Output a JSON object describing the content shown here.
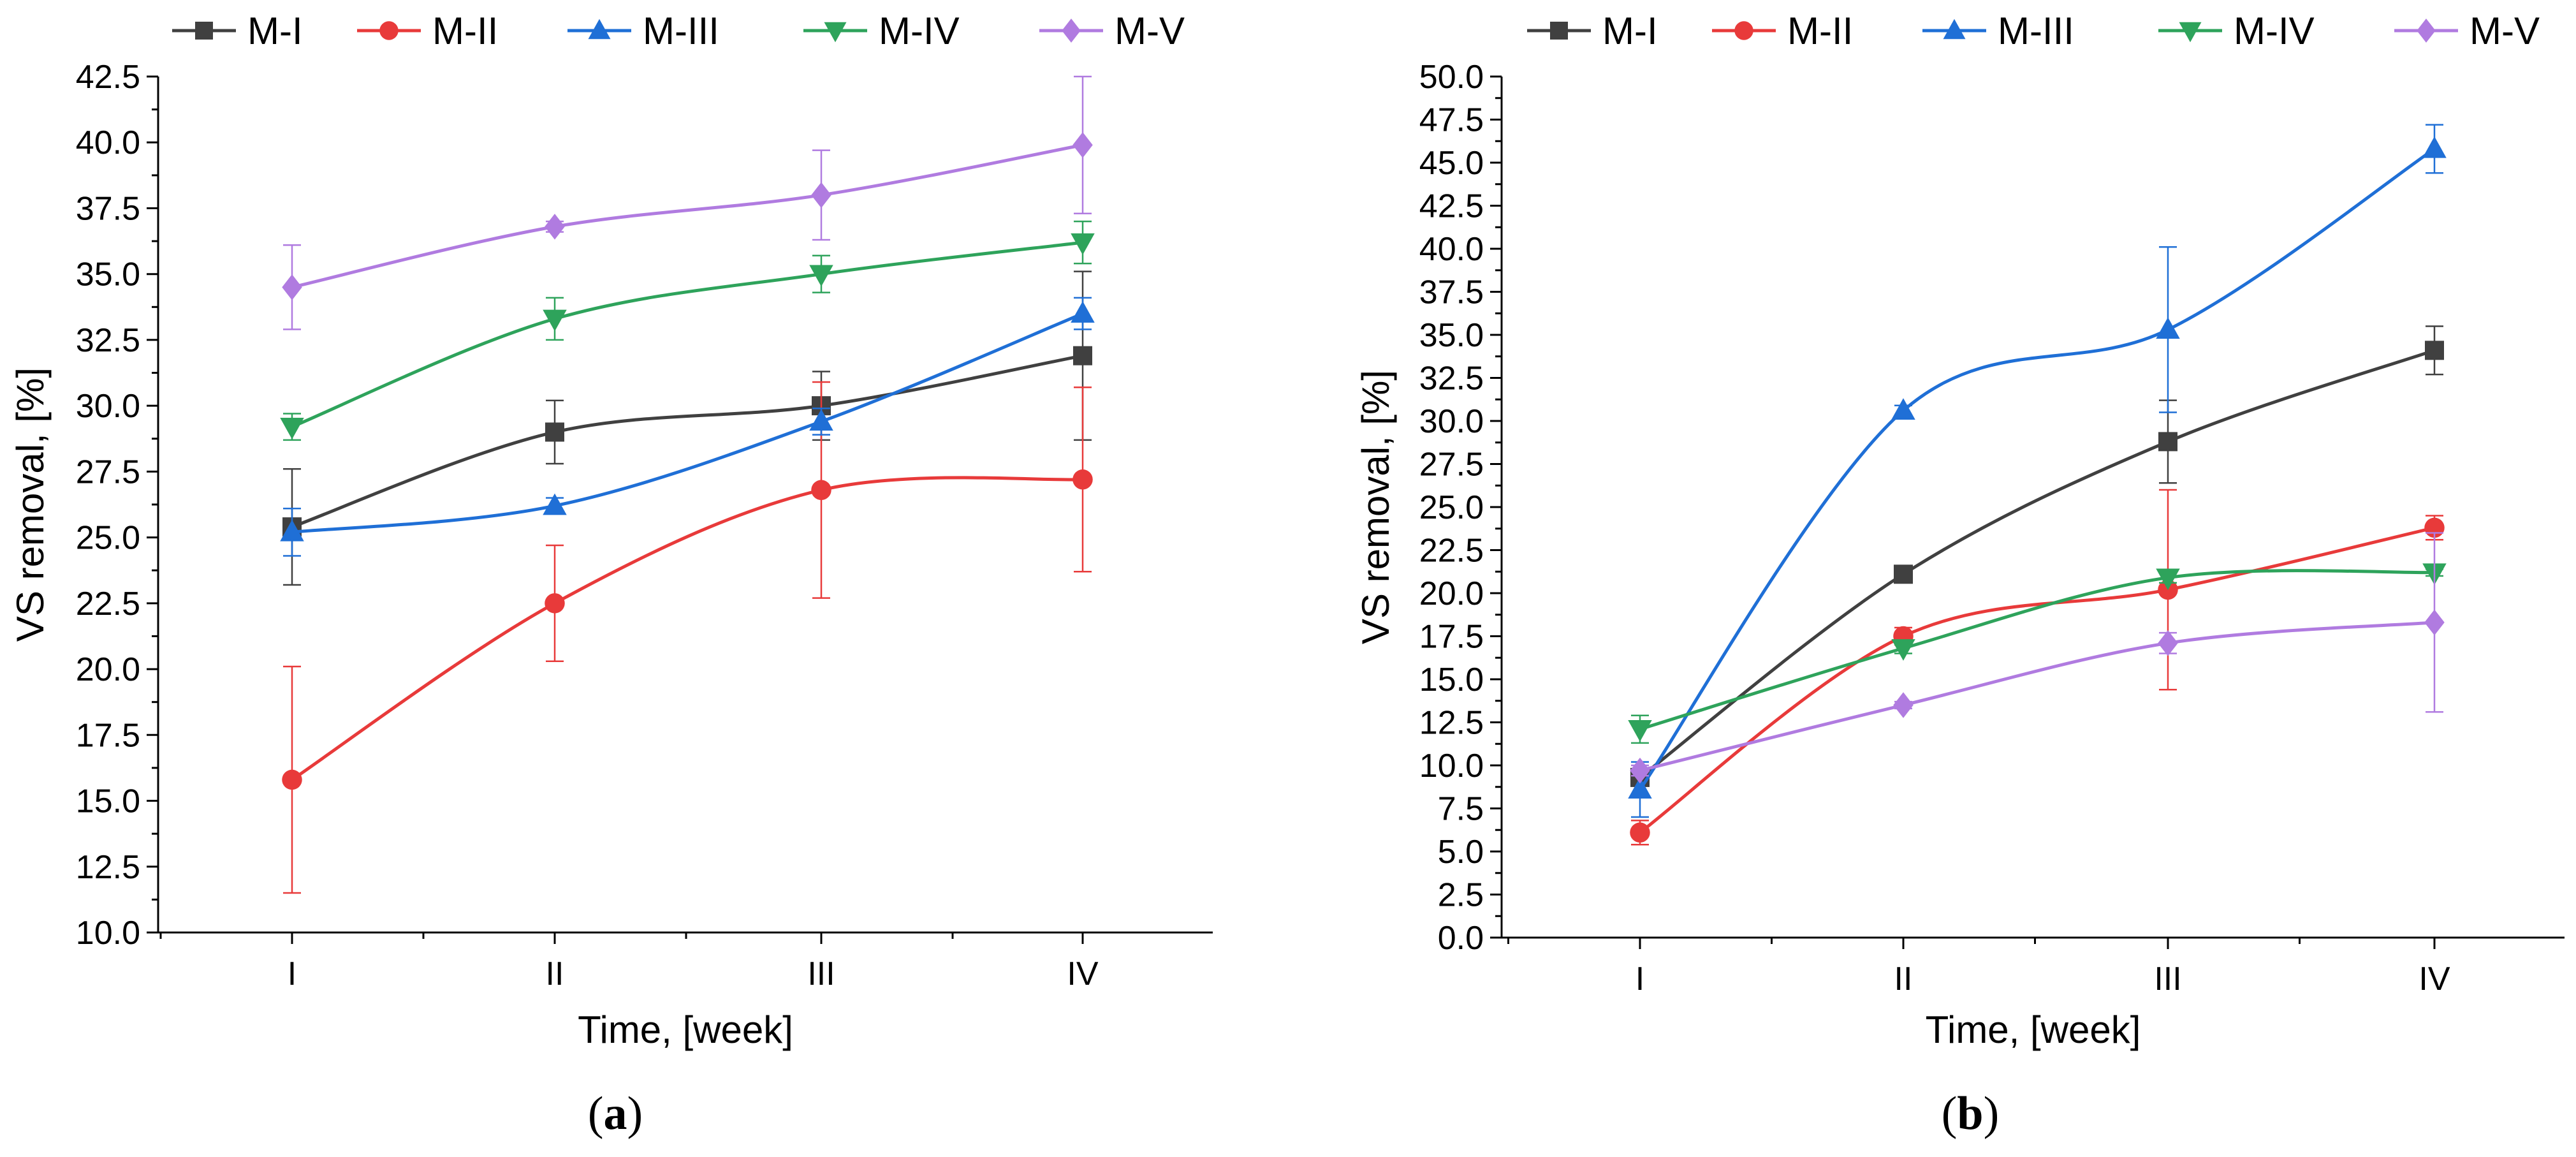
{
  "figure": {
    "panels": [
      {
        "label_open": "(",
        "label_letter": "a",
        "label_close": ")"
      },
      {
        "label_open": "(",
        "label_letter": "b",
        "label_close": ")"
      }
    ]
  },
  "chart_data": [
    {
      "type": "line",
      "panel": "a",
      "xlabel": "Time, [week]",
      "ylabel": "VS removal, [%]",
      "categories": [
        "I",
        "II",
        "III",
        "IV"
      ],
      "ylim": [
        10.0,
        42.5
      ],
      "ytick_step": 2.5,
      "ytick_labels": [
        "10.0",
        "12.5",
        "15.0",
        "17.5",
        "20.0",
        "22.5",
        "25.0",
        "27.5",
        "30.0",
        "32.5",
        "35.0",
        "37.5",
        "40.0",
        "42.5"
      ],
      "legend_position": "top",
      "series": [
        {
          "name": "M-I",
          "color": "#404040",
          "marker": "square",
          "values": [
            25.4,
            29.0,
            30.0,
            31.9
          ],
          "errors": [
            2.2,
            1.2,
            1.3,
            3.2
          ]
        },
        {
          "name": "M-II",
          "color": "#e83a3a",
          "marker": "circle",
          "values": [
            15.8,
            22.5,
            26.8,
            27.2
          ],
          "errors": [
            4.3,
            2.2,
            4.1,
            3.5
          ]
        },
        {
          "name": "M-III",
          "color": "#1f6fd6",
          "marker": "triangle-up",
          "values": [
            25.2,
            26.2,
            29.4,
            33.5
          ],
          "errors": [
            0.9,
            0.3,
            0.5,
            0.6
          ]
        },
        {
          "name": "M-IV",
          "color": "#2ea35b",
          "marker": "triangle-down",
          "values": [
            29.2,
            33.3,
            35.0,
            36.2
          ],
          "errors": [
            0.5,
            0.8,
            0.7,
            0.8
          ]
        },
        {
          "name": "M-V",
          "color": "#b07be0",
          "marker": "diamond",
          "values": [
            34.5,
            36.8,
            38.0,
            39.9
          ],
          "errors": [
            1.6,
            0.2,
            1.7,
            2.6
          ]
        }
      ]
    },
    {
      "type": "line",
      "panel": "b",
      "xlabel": "Time, [week]",
      "ylabel": "VS removal, [%]",
      "categories": [
        "I",
        "II",
        "III",
        "IV"
      ],
      "ylim": [
        0.0,
        50.0
      ],
      "ytick_step": 2.5,
      "ytick_labels": [
        "0.0",
        "2.5",
        "5.0",
        "7.5",
        "10.0",
        "12.5",
        "15.0",
        "17.5",
        "20.0",
        "22.5",
        "25.0",
        "27.5",
        "30.0",
        "32.5",
        "35.0",
        "37.5",
        "40.0",
        "42.5",
        "45.0",
        "47.5",
        "50.0"
      ],
      "legend_position": "top",
      "series": [
        {
          "name": "M-I",
          "color": "#404040",
          "marker": "square",
          "values": [
            9.3,
            21.1,
            28.8,
            34.1
          ],
          "errors": [
            0.5,
            0.4,
            2.4,
            1.4
          ]
        },
        {
          "name": "M-II",
          "color": "#e83a3a",
          "marker": "circle",
          "values": [
            6.1,
            17.5,
            20.2,
            23.8
          ],
          "errors": [
            0.7,
            0.5,
            5.8,
            0.7
          ]
        },
        {
          "name": "M-III",
          "color": "#1f6fd6",
          "marker": "triangle-up",
          "values": [
            8.6,
            30.6,
            35.3,
            45.8
          ],
          "errors": [
            1.6,
            0.3,
            4.8,
            1.4
          ]
        },
        {
          "name": "M-IV",
          "color": "#2ea35b",
          "marker": "triangle-down",
          "values": [
            12.1,
            16.8,
            20.9,
            21.2
          ],
          "errors": [
            0.8,
            0.3,
            0.3,
            0.2
          ]
        },
        {
          "name": "M-V",
          "color": "#b07be0",
          "marker": "diamond",
          "values": [
            9.7,
            13.5,
            17.1,
            18.3
          ],
          "errors": [
            0.3,
            0.2,
            0.6,
            5.2
          ]
        }
      ]
    }
  ]
}
